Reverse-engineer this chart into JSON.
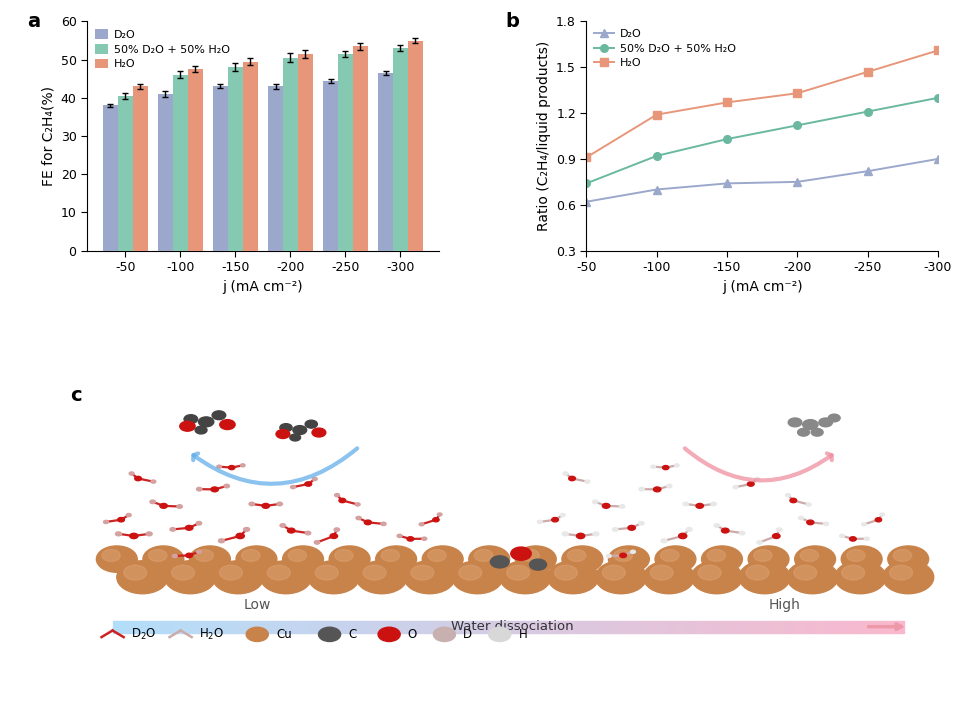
{
  "bar_x": [
    -50,
    -100,
    -150,
    -200,
    -250,
    -300
  ],
  "bar_D2O": [
    38.0,
    41.0,
    43.0,
    43.0,
    44.5,
    46.5
  ],
  "bar_mix": [
    40.5,
    46.0,
    48.0,
    50.5,
    51.5,
    53.0
  ],
  "bar_H2O": [
    43.0,
    47.5,
    49.5,
    51.5,
    53.5,
    55.0
  ],
  "bar_D2O_err": [
    0.5,
    0.8,
    0.5,
    0.7,
    0.5,
    0.6
  ],
  "bar_mix_err": [
    0.8,
    0.9,
    1.0,
    1.2,
    0.7,
    0.8
  ],
  "bar_H2O_err": [
    0.7,
    0.7,
    0.8,
    1.0,
    0.9,
    0.7
  ],
  "color_D2O": "#9ba8cc",
  "color_mix": "#85c9b2",
  "color_H2O": "#e8967a",
  "line_x": [
    -50,
    -100,
    -150,
    -200,
    -250,
    -300
  ],
  "line_D2O": [
    0.62,
    0.7,
    0.74,
    0.75,
    0.82,
    0.9
  ],
  "line_mix": [
    0.74,
    0.92,
    1.03,
    1.12,
    1.21,
    1.3
  ],
  "line_H2O": [
    0.91,
    1.19,
    1.27,
    1.33,
    1.47,
    1.61
  ],
  "line_color_D2O": "#9ba8cc",
  "line_color_mix": "#6ab8a0",
  "line_color_H2O": "#e8967a",
  "ylabel_a": "FE for C₂H₄(%)",
  "ylabel_b": "Ratio (C₂H₄/liquid products)",
  "xlabel": "j (mA cm⁻²)",
  "ylim_a": [
    0,
    60
  ],
  "ylim_b": [
    0.3,
    1.8
  ],
  "yticks_a": [
    0,
    10,
    20,
    30,
    40,
    50,
    60
  ],
  "yticks_b": [
    0.3,
    0.6,
    0.9,
    1.2,
    1.5,
    1.8
  ],
  "label_D2O": "D₂O",
  "label_mix": "50% D₂O + 50% H₂O",
  "label_H2O": "H₂O",
  "panel_a": "a",
  "panel_b": "b",
  "panel_c": "c",
  "copper_color": "#c8834a",
  "copper_highlight": "#dba070",
  "copper_shadow": "#a06030"
}
